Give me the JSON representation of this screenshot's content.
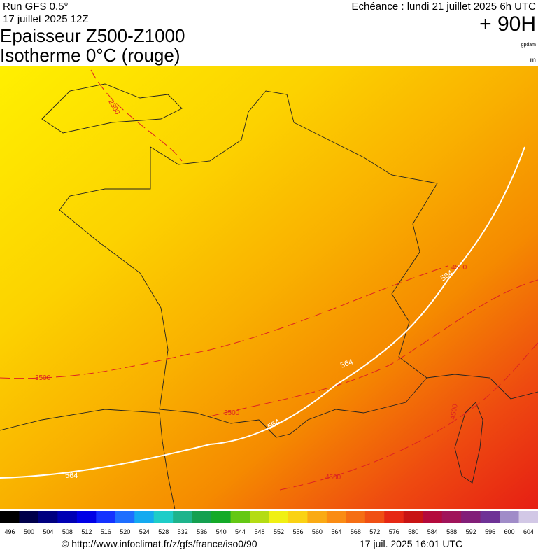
{
  "header": {
    "run": "Run GFS 0.5°",
    "date": "17 juillet 2025 12Z",
    "title_line1": "Epaisseur Z500-Z1000",
    "title_line2": "Isotherme 0°C (rouge)",
    "echeance": "Echéance : lundi 21 juillet 2025 6h UTC",
    "lead": "+ 90H",
    "unit1": "gpdam",
    "unit2": "m"
  },
  "map": {
    "contour_labels": [
      "2500",
      "3500",
      "3500",
      "4500",
      "4500",
      "4500",
      "564",
      "564",
      "564",
      "564"
    ]
  },
  "colorbar": {
    "labels": [
      496,
      500,
      504,
      508,
      512,
      516,
      520,
      524,
      528,
      532,
      536,
      540,
      544,
      548,
      552,
      556,
      560,
      564,
      568,
      572,
      576,
      580,
      584,
      588,
      592,
      596,
      600,
      604
    ],
    "colors": [
      "#000000",
      "#00004a",
      "#000080",
      "#0000b4",
      "#0000e6",
      "#1432ff",
      "#1e6eff",
      "#14aaf0",
      "#1ecdc8",
      "#1eb48c",
      "#14a050",
      "#14aa28",
      "#64c814",
      "#b4dc14",
      "#f0f014",
      "#fad214",
      "#faaa14",
      "#fa8c14",
      "#f56e14",
      "#f05014",
      "#e62814",
      "#c81414",
      "#b40a3c",
      "#a0145a",
      "#821e78",
      "#6e3296",
      "#a08cc8",
      "#d2c8e6"
    ]
  },
  "footer": {
    "url": "© http://www.infoclimat.fr/z/gfs/france/iso0/90",
    "timestamp": "17 juil. 2025 16:01 UTC"
  }
}
